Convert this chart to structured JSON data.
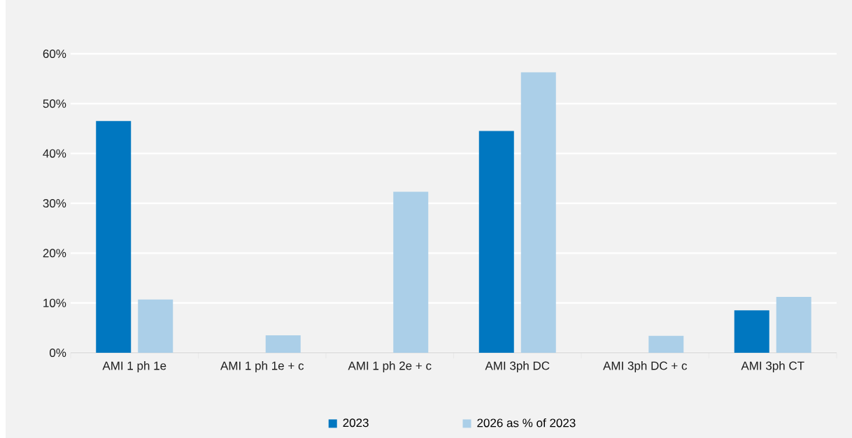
{
  "chart_data": {
    "type": "bar",
    "categories": [
      "AMI 1 ph 1e",
      "AMI 1 ph 1e + c",
      "AMI 1 ph 2e + c",
      "AMI 3ph DC",
      "AMI 3ph DC + c",
      "AMI 3ph CT"
    ],
    "series": [
      {
        "name": "2023",
        "color": "#0077c0",
        "values": [
          46.5,
          0,
          0,
          44.5,
          0,
          8.5
        ]
      },
      {
        "name": "2026 as % of 2023",
        "color": "#abcfe8",
        "values": [
          10.7,
          3.5,
          32.3,
          56.3,
          3.4,
          11.2
        ]
      }
    ],
    "ylim": [
      0,
      60
    ],
    "yticks": [
      {
        "value": 0,
        "label": "0%"
      },
      {
        "value": 10,
        "label": "10%"
      },
      {
        "value": 20,
        "label": "20%"
      },
      {
        "value": 30,
        "label": "30%"
      },
      {
        "value": 40,
        "label": "40%"
      },
      {
        "value": 50,
        "label": "50%"
      },
      {
        "value": 60,
        "label": "60%"
      }
    ],
    "grid": "y",
    "legend": "bottom"
  }
}
